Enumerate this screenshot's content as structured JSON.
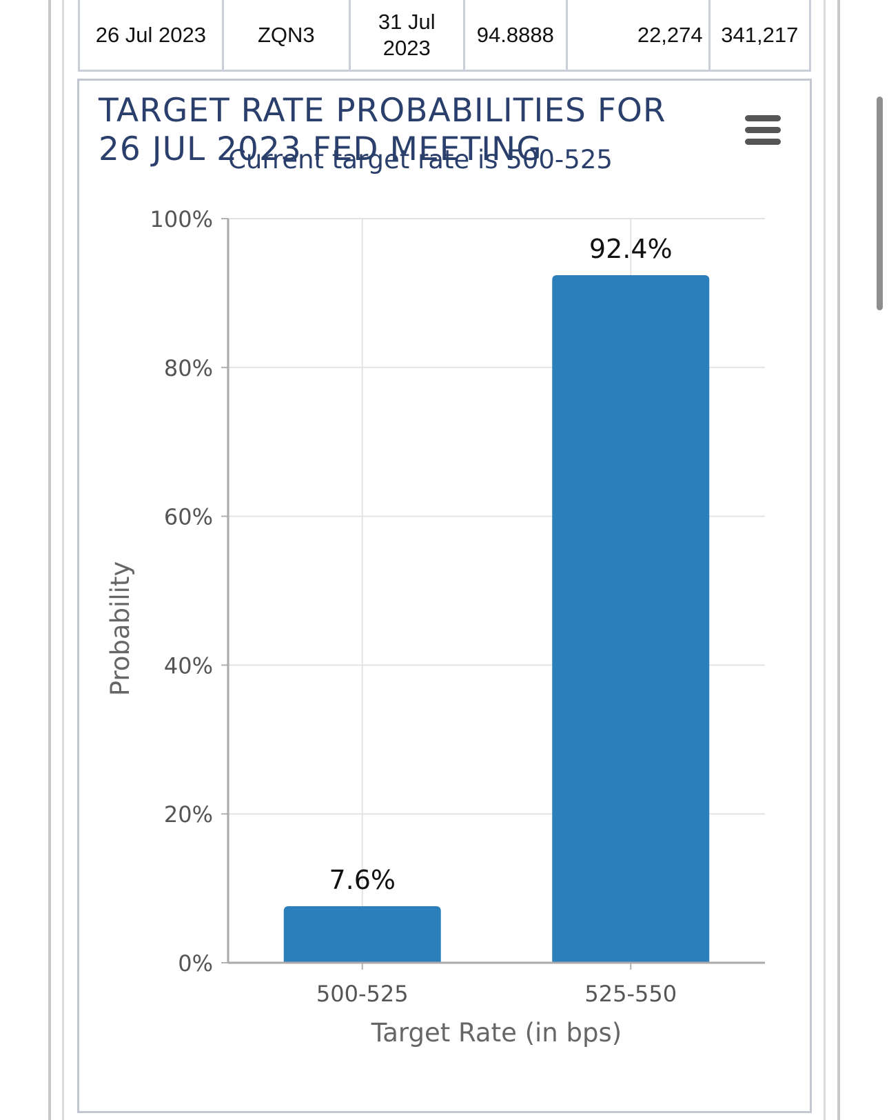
{
  "table": {
    "row": {
      "meeting_date": "26 Jul 2023",
      "contract": "ZQN3",
      "expires": "31 Jul 2023",
      "mid_price": "94.8888",
      "prior_volume": "22,274",
      "prior_oi": "341,217"
    }
  },
  "chart": {
    "title": "TARGET RATE PROBABILITIES FOR 26 JUL 2023 FED MEETING",
    "subtitle": "Current target rate is 500-525",
    "menu_icon": "hamburger-menu-icon"
  },
  "chart_data": {
    "type": "bar",
    "categories": [
      "500-525",
      "525-550"
    ],
    "values": [
      7.6,
      92.4
    ],
    "data_labels": [
      "7.6%",
      "92.4%"
    ],
    "title": "TARGET RATE PROBABILITIES FOR 26 JUL 2023 FED MEETING",
    "subtitle": "Current target rate is 500-525",
    "xlabel": "Target Rate (in bps)",
    "ylabel": "Probability",
    "ylim": [
      0,
      100
    ],
    "yticks": [
      0,
      20,
      40,
      60,
      80,
      100
    ],
    "ytick_labels": [
      "0%",
      "20%",
      "40%",
      "60%",
      "80%",
      "100%"
    ],
    "grid": true,
    "bar_color": "#2b7fba"
  }
}
